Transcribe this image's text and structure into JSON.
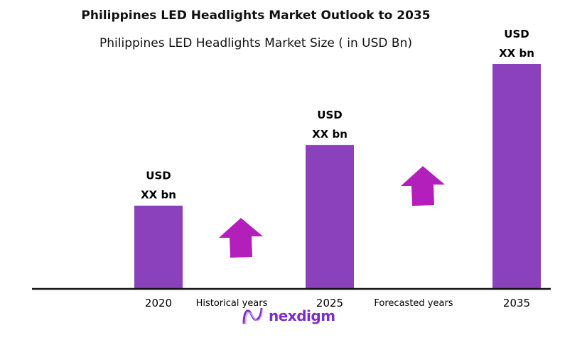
{
  "title": "Philippines LED Headlights Market Outlook to 2035",
  "subtitle": "Philippines  LED Headlights  Market Size  ( in USD Bn)",
  "chart_data": {
    "type": "bar",
    "categories": [
      "2020",
      "2025",
      "2035"
    ],
    "values": [
      0.37,
      0.64,
      1.0
    ],
    "value_note": "relative bar heights (2035 = 1); actual values not shown",
    "data_labels": [
      {
        "line1": "USD",
        "line2": "XX bn"
      },
      {
        "line1": "USD",
        "line2": "XX bn"
      },
      {
        "line1": "USD",
        "line2": "XX bn"
      }
    ],
    "period_labels": [
      "Historical years",
      "Forecasted years"
    ],
    "grid": false,
    "bar_color": "#8B41BB",
    "arrow_color": "#B31FBA"
  },
  "logo": {
    "text": "nexdigm"
  }
}
